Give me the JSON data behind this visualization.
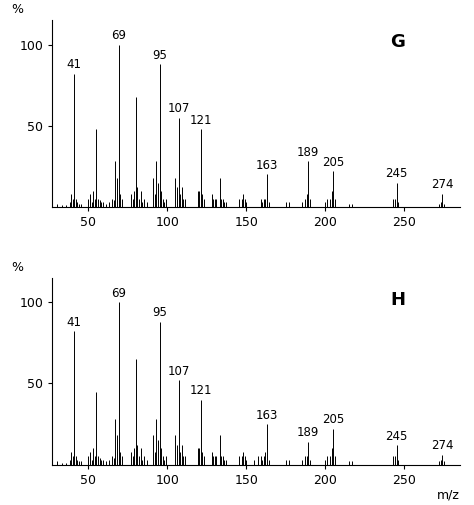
{
  "G": {
    "label": "G",
    "peaks": [
      [
        30,
        2
      ],
      [
        33,
        1
      ],
      [
        36,
        1
      ],
      [
        38,
        3
      ],
      [
        39,
        8
      ],
      [
        40,
        5
      ],
      [
        41,
        82
      ],
      [
        42,
        5
      ],
      [
        43,
        3
      ],
      [
        44,
        2
      ],
      [
        45,
        2
      ],
      [
        50,
        5
      ],
      [
        51,
        8
      ],
      [
        52,
        3
      ],
      [
        53,
        10
      ],
      [
        54,
        5
      ],
      [
        55,
        48
      ],
      [
        56,
        5
      ],
      [
        57,
        4
      ],
      [
        58,
        3
      ],
      [
        59,
        3
      ],
      [
        61,
        2
      ],
      [
        63,
        3
      ],
      [
        65,
        5
      ],
      [
        66,
        4
      ],
      [
        67,
        28
      ],
      [
        68,
        18
      ],
      [
        69,
        100
      ],
      [
        70,
        8
      ],
      [
        71,
        5
      ],
      [
        77,
        8
      ],
      [
        78,
        5
      ],
      [
        79,
        10
      ],
      [
        80,
        68
      ],
      [
        81,
        12
      ],
      [
        82,
        5
      ],
      [
        83,
        10
      ],
      [
        84,
        3
      ],
      [
        85,
        5
      ],
      [
        87,
        3
      ],
      [
        91,
        18
      ],
      [
        92,
        8
      ],
      [
        93,
        28
      ],
      [
        94,
        15
      ],
      [
        95,
        88
      ],
      [
        96,
        10
      ],
      [
        97,
        5
      ],
      [
        98,
        3
      ],
      [
        99,
        5
      ],
      [
        105,
        18
      ],
      [
        106,
        12
      ],
      [
        107,
        55
      ],
      [
        108,
        8
      ],
      [
        109,
        12
      ],
      [
        110,
        5
      ],
      [
        111,
        5
      ],
      [
        119,
        10
      ],
      [
        120,
        10
      ],
      [
        121,
        48
      ],
      [
        122,
        8
      ],
      [
        123,
        5
      ],
      [
        128,
        8
      ],
      [
        129,
        5
      ],
      [
        130,
        5
      ],
      [
        131,
        5
      ],
      [
        133,
        18
      ],
      [
        134,
        5
      ],
      [
        135,
        5
      ],
      [
        136,
        3
      ],
      [
        137,
        3
      ],
      [
        145,
        5
      ],
      [
        147,
        5
      ],
      [
        148,
        8
      ],
      [
        149,
        5
      ],
      [
        150,
        3
      ],
      [
        159,
        5
      ],
      [
        160,
        3
      ],
      [
        161,
        5
      ],
      [
        162,
        5
      ],
      [
        163,
        20
      ],
      [
        164,
        3
      ],
      [
        175,
        3
      ],
      [
        177,
        3
      ],
      [
        185,
        3
      ],
      [
        187,
        5
      ],
      [
        188,
        8
      ],
      [
        189,
        28
      ],
      [
        190,
        5
      ],
      [
        200,
        3
      ],
      [
        201,
        5
      ],
      [
        203,
        5
      ],
      [
        204,
        10
      ],
      [
        205,
        22
      ],
      [
        206,
        5
      ],
      [
        215,
        2
      ],
      [
        217,
        2
      ],
      [
        243,
        5
      ],
      [
        244,
        5
      ],
      [
        245,
        15
      ],
      [
        246,
        3
      ],
      [
        272,
        2
      ],
      [
        273,
        3
      ],
      [
        274,
        8
      ],
      [
        275,
        2
      ]
    ],
    "labeled_peaks": [
      [
        41,
        82,
        "41"
      ],
      [
        69,
        100,
        "69"
      ],
      [
        95,
        88,
        "95"
      ],
      [
        107,
        55,
        "107"
      ],
      [
        121,
        48,
        "121"
      ],
      [
        163,
        20,
        "163"
      ],
      [
        189,
        28,
        "189"
      ],
      [
        205,
        22,
        "205"
      ],
      [
        245,
        15,
        "245"
      ],
      [
        274,
        8,
        "274"
      ]
    ]
  },
  "H": {
    "label": "H",
    "peaks": [
      [
        30,
        2
      ],
      [
        33,
        1
      ],
      [
        36,
        1
      ],
      [
        38,
        3
      ],
      [
        39,
        8
      ],
      [
        40,
        5
      ],
      [
        41,
        82
      ],
      [
        42,
        5
      ],
      [
        43,
        3
      ],
      [
        44,
        2
      ],
      [
        45,
        2
      ],
      [
        50,
        5
      ],
      [
        51,
        8
      ],
      [
        52,
        3
      ],
      [
        53,
        10
      ],
      [
        54,
        5
      ],
      [
        55,
        45
      ],
      [
        56,
        5
      ],
      [
        57,
        4
      ],
      [
        58,
        3
      ],
      [
        59,
        3
      ],
      [
        61,
        2
      ],
      [
        63,
        3
      ],
      [
        65,
        5
      ],
      [
        66,
        4
      ],
      [
        67,
        28
      ],
      [
        68,
        18
      ],
      [
        69,
        100
      ],
      [
        70,
        8
      ],
      [
        71,
        5
      ],
      [
        77,
        8
      ],
      [
        78,
        5
      ],
      [
        79,
        10
      ],
      [
        80,
        65
      ],
      [
        81,
        12
      ],
      [
        82,
        5
      ],
      [
        83,
        10
      ],
      [
        84,
        3
      ],
      [
        85,
        5
      ],
      [
        87,
        3
      ],
      [
        91,
        18
      ],
      [
        92,
        8
      ],
      [
        93,
        28
      ],
      [
        94,
        15
      ],
      [
        95,
        88
      ],
      [
        96,
        10
      ],
      [
        97,
        5
      ],
      [
        98,
        3
      ],
      [
        99,
        5
      ],
      [
        105,
        18
      ],
      [
        106,
        12
      ],
      [
        107,
        52
      ],
      [
        108,
        8
      ],
      [
        109,
        12
      ],
      [
        110,
        5
      ],
      [
        111,
        5
      ],
      [
        119,
        10
      ],
      [
        120,
        10
      ],
      [
        121,
        40
      ],
      [
        122,
        8
      ],
      [
        123,
        5
      ],
      [
        128,
        8
      ],
      [
        129,
        5
      ],
      [
        130,
        5
      ],
      [
        131,
        5
      ],
      [
        133,
        18
      ],
      [
        134,
        5
      ],
      [
        135,
        5
      ],
      [
        136,
        3
      ],
      [
        137,
        3
      ],
      [
        145,
        5
      ],
      [
        147,
        5
      ],
      [
        148,
        8
      ],
      [
        149,
        5
      ],
      [
        150,
        3
      ],
      [
        155,
        3
      ],
      [
        157,
        5
      ],
      [
        159,
        5
      ],
      [
        160,
        3
      ],
      [
        161,
        5
      ],
      [
        162,
        8
      ],
      [
        163,
        25
      ],
      [
        164,
        3
      ],
      [
        175,
        3
      ],
      [
        177,
        3
      ],
      [
        185,
        3
      ],
      [
        187,
        5
      ],
      [
        188,
        5
      ],
      [
        189,
        14
      ],
      [
        190,
        3
      ],
      [
        200,
        3
      ],
      [
        201,
        5
      ],
      [
        203,
        5
      ],
      [
        204,
        10
      ],
      [
        205,
        22
      ],
      [
        206,
        5
      ],
      [
        215,
        2
      ],
      [
        217,
        2
      ],
      [
        243,
        5
      ],
      [
        244,
        5
      ],
      [
        245,
        12
      ],
      [
        246,
        3
      ],
      [
        272,
        2
      ],
      [
        273,
        3
      ],
      [
        274,
        6
      ],
      [
        275,
        2
      ]
    ],
    "labeled_peaks": [
      [
        41,
        82,
        "41"
      ],
      [
        69,
        100,
        "69"
      ],
      [
        95,
        88,
        "95"
      ],
      [
        107,
        52,
        "107"
      ],
      [
        121,
        40,
        "121"
      ],
      [
        163,
        25,
        "163"
      ],
      [
        189,
        14,
        "189"
      ],
      [
        205,
        22,
        "205"
      ],
      [
        245,
        12,
        "245"
      ],
      [
        274,
        6,
        "274"
      ]
    ]
  },
  "xlim": [
    27,
    285
  ],
  "ylim": [
    0,
    115
  ],
  "xticks": [
    50,
    100,
    150,
    200,
    250
  ],
  "yticks": [
    50,
    100
  ],
  "background_color": "#ffffff",
  "bar_color": "#000000",
  "label_fontsize": 8.5,
  "axis_fontsize": 9,
  "tick_fontsize": 9,
  "compound_label_fontsize": 13
}
